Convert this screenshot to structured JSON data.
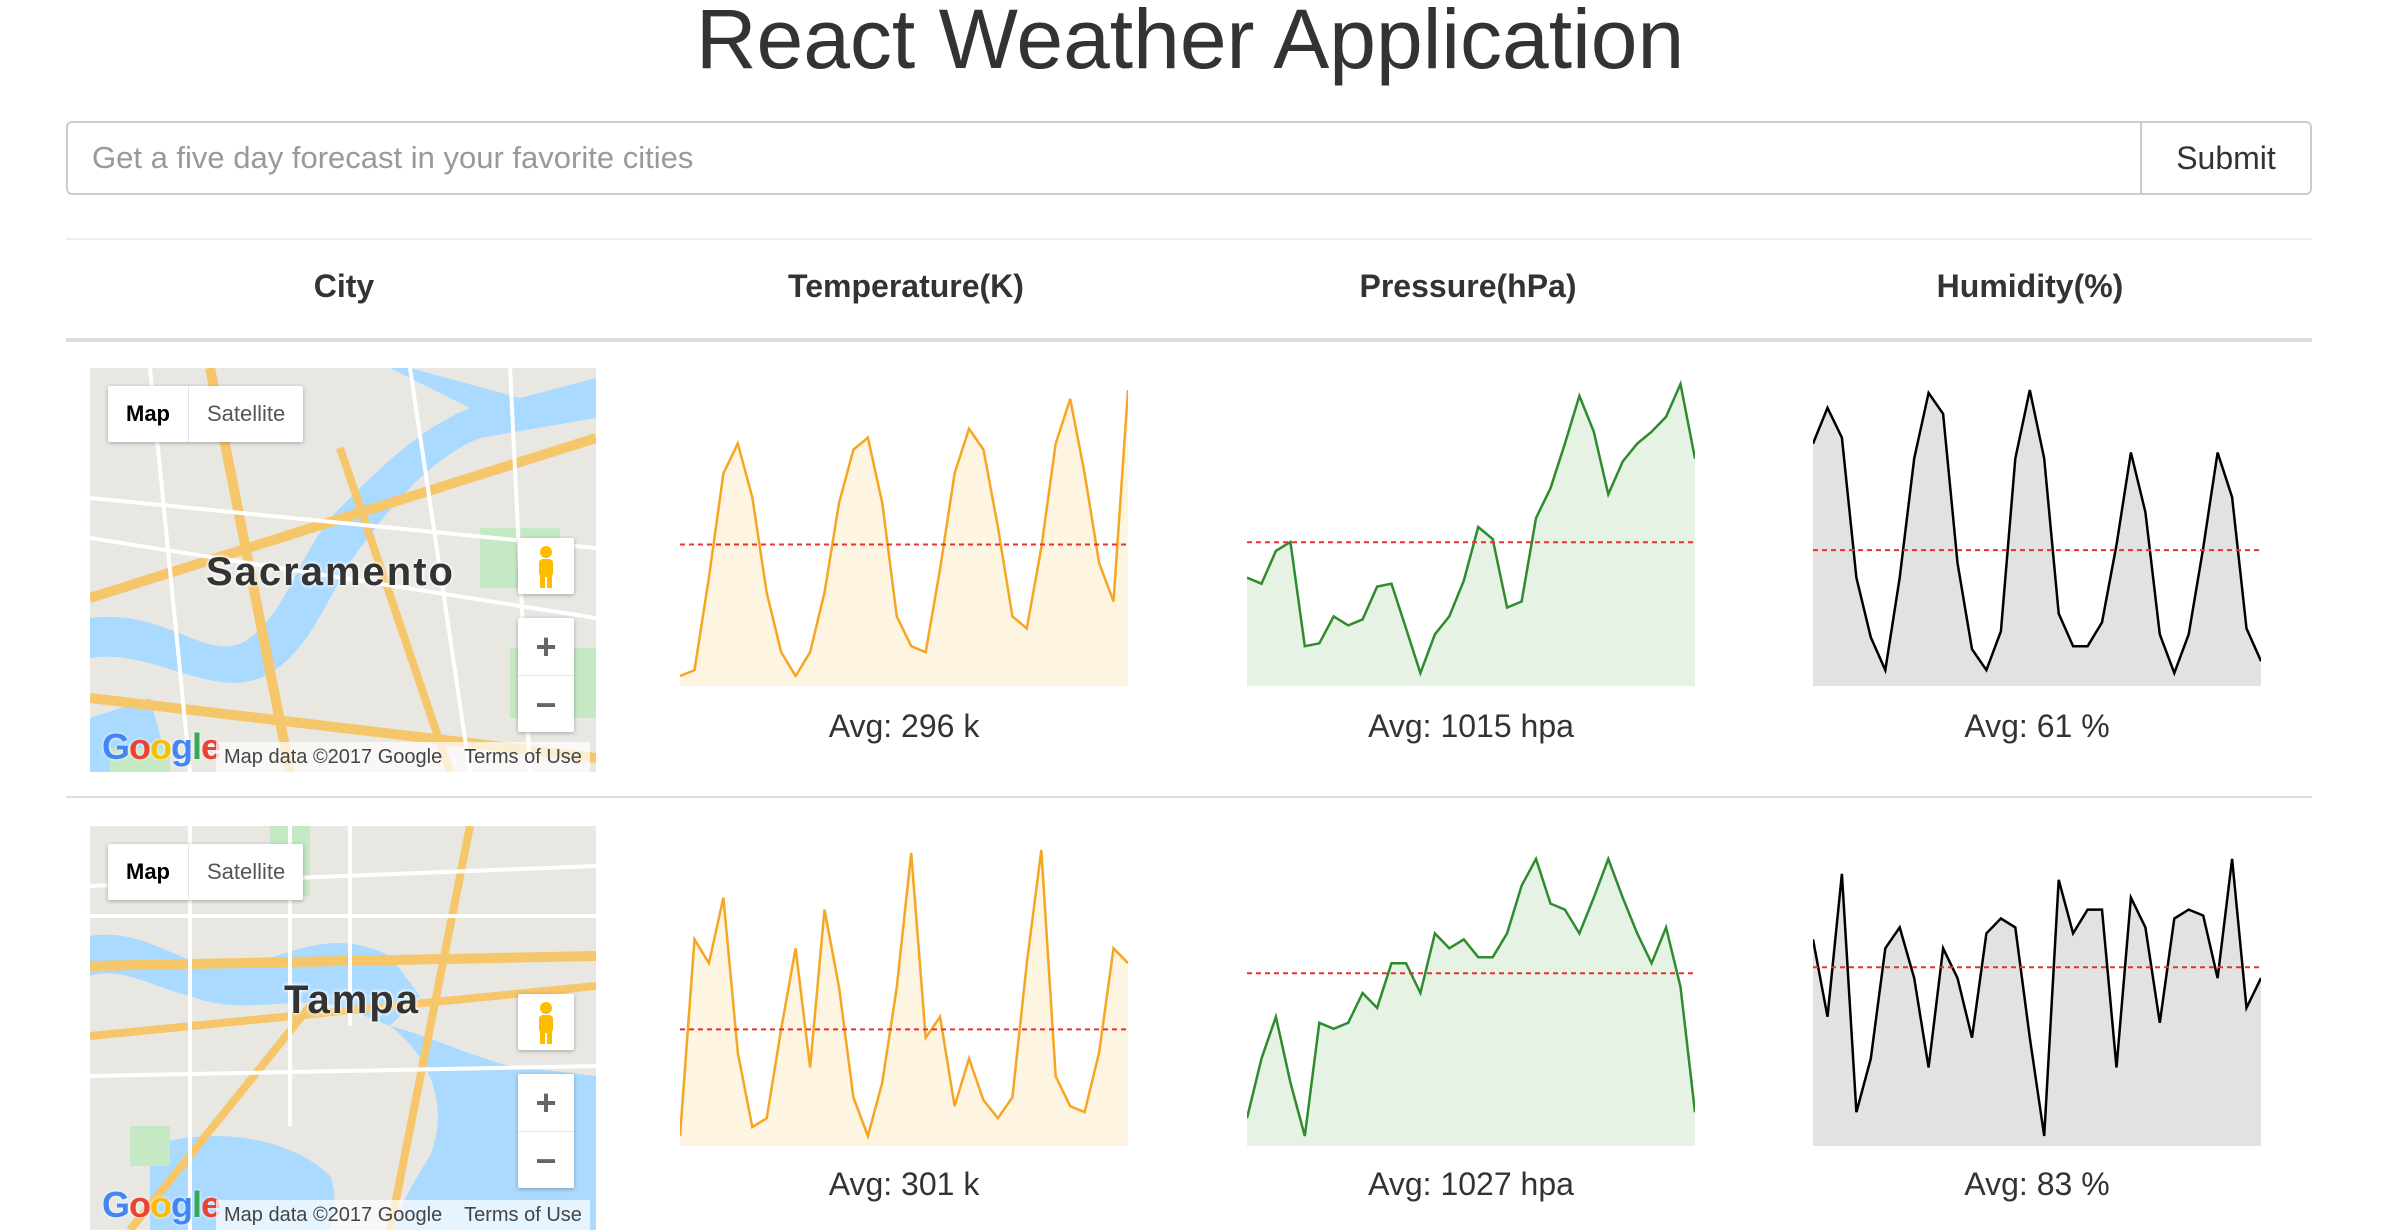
{
  "page": {
    "title": "React Weather Application"
  },
  "search": {
    "placeholder": "Get a five day forecast in your favorite cities",
    "value": "",
    "submit_label": "Submit"
  },
  "table": {
    "headers": [
      "City",
      "Temperature(K)",
      "Pressure(hPa)",
      "Humidity(%)"
    ],
    "rows": [
      {
        "city": "Sacramento",
        "map": {
          "tab_map": "Map",
          "tab_satellite": "Satellite",
          "attribution": "Map data ©2017 Google",
          "terms": "Terms of Use",
          "logo": "Google",
          "zoom_in": "+",
          "zoom_out": "−"
        },
        "avg_temperature": "Avg: 296 k",
        "avg_pressure": "Avg: 1015 hpa",
        "avg_humidity": "Avg: 61 %"
      },
      {
        "city": "Tampa",
        "map": {
          "tab_map": "Map",
          "tab_satellite": "Satellite",
          "attribution": "Map data ©2017 Google",
          "terms": "Terms of Use",
          "logo": "Google",
          "zoom_in": "+",
          "zoom_out": "−"
        },
        "avg_temperature": "Avg: 301 k",
        "avg_pressure": "Avg: 1027 hpa",
        "avg_humidity": "Avg: 83 %"
      }
    ]
  },
  "chart_data": [
    {
      "type": "area",
      "city": "Sacramento",
      "metric": "temperature",
      "color": "#f5a623",
      "fill": "#fef4e2",
      "values": [
        0.02,
        0.04,
        0.35,
        0.7,
        0.8,
        0.62,
        0.3,
        0.1,
        0.02,
        0.1,
        0.3,
        0.6,
        0.78,
        0.82,
        0.6,
        0.22,
        0.12,
        0.1,
        0.38,
        0.7,
        0.85,
        0.78,
        0.52,
        0.22,
        0.18,
        0.45,
        0.8,
        0.95,
        0.7,
        0.4,
        0.27,
        0.98
      ]
    },
    {
      "type": "area",
      "city": "Sacramento",
      "metric": "pressure",
      "color": "#2e8b2e",
      "fill": "#e6f2e3",
      "values": [
        0.35,
        0.33,
        0.44,
        0.47,
        0.12,
        0.13,
        0.22,
        0.19,
        0.21,
        0.32,
        0.33,
        0.18,
        0.03,
        0.16,
        0.22,
        0.34,
        0.52,
        0.48,
        0.25,
        0.27,
        0.55,
        0.65,
        0.8,
        0.96,
        0.84,
        0.63,
        0.74,
        0.8,
        0.84,
        0.89,
        1.0,
        0.75
      ]
    },
    {
      "type": "area",
      "city": "Sacramento",
      "metric": "humidity",
      "color": "#000000",
      "fill": "#e2e2e2",
      "values": [
        0.8,
        0.92,
        0.82,
        0.35,
        0.15,
        0.04,
        0.35,
        0.75,
        0.97,
        0.9,
        0.4,
        0.11,
        0.04,
        0.17,
        0.75,
        0.98,
        0.75,
        0.23,
        0.12,
        0.12,
        0.2,
        0.46,
        0.77,
        0.57,
        0.16,
        0.03,
        0.16,
        0.45,
        0.77,
        0.62,
        0.18,
        0.07
      ]
    },
    {
      "type": "area",
      "city": "Tampa",
      "metric": "temperature",
      "color": "#f5a623",
      "fill": "#fef4e2",
      "values": [
        0.02,
        0.68,
        0.6,
        0.82,
        0.3,
        0.05,
        0.08,
        0.38,
        0.65,
        0.25,
        0.78,
        0.52,
        0.15,
        0.02,
        0.2,
        0.52,
        0.97,
        0.35,
        0.42,
        0.12,
        0.28,
        0.14,
        0.08,
        0.15,
        0.6,
        0.98,
        0.22,
        0.12,
        0.1,
        0.3,
        0.65,
        0.6
      ]
    },
    {
      "type": "area",
      "city": "Tampa",
      "metric": "pressure",
      "color": "#2e8b2e",
      "fill": "#e6f2e3",
      "values": [
        0.08,
        0.28,
        0.42,
        0.2,
        0.02,
        0.4,
        0.38,
        0.4,
        0.5,
        0.45,
        0.6,
        0.6,
        0.5,
        0.7,
        0.65,
        0.68,
        0.62,
        0.62,
        0.7,
        0.86,
        0.95,
        0.8,
        0.78,
        0.7,
        0.82,
        0.95,
        0.82,
        0.7,
        0.6,
        0.72,
        0.52,
        0.1
      ]
    },
    {
      "type": "area",
      "city": "Tampa",
      "metric": "humidity",
      "color": "#000000",
      "fill": "#e2e2e2",
      "values": [
        0.68,
        0.42,
        0.9,
        0.1,
        0.28,
        0.65,
        0.72,
        0.55,
        0.25,
        0.65,
        0.55,
        0.35,
        0.7,
        0.75,
        0.72,
        0.35,
        0.02,
        0.88,
        0.7,
        0.78,
        0.78,
        0.25,
        0.82,
        0.72,
        0.4,
        0.75,
        0.78,
        0.76,
        0.55,
        0.95,
        0.45,
        0.55
      ]
    }
  ]
}
